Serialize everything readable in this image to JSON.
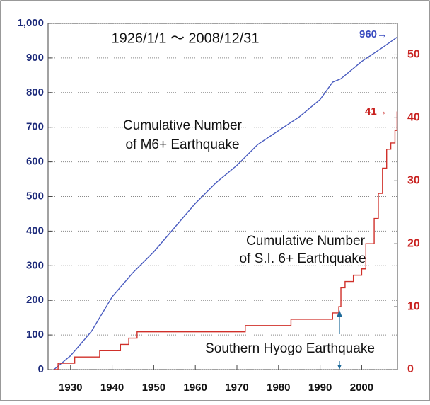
{
  "chart_data": {
    "type": "line",
    "annotations": [
      "1926/1/1 ～ 2008/12/31",
      "960→",
      "41→",
      "Cumulative Number",
      "of M6+ Earthquake",
      "Cumulative Number",
      "of S.I. 6+ Earthquake",
      "Southern Hyogo Earthquake"
    ],
    "xlim": [
      1924.6,
      2008.6
    ],
    "xticks": [
      1930,
      1940,
      1950,
      1960,
      1970,
      1980,
      1990,
      2000
    ],
    "ylim": [
      0,
      1000
    ],
    "yticks": [
      0,
      100,
      200,
      300,
      400,
      500,
      600,
      700,
      800,
      900,
      {
        "value": 1000,
        "label": "1,000"
      }
    ],
    "y2lim": [
      0,
      55
    ],
    "y2ticks": [
      0,
      10,
      20,
      30,
      40,
      50
    ],
    "grid": true,
    "series": [
      {
        "name": "Cumulative Number of M6+ Earthquake",
        "color": "#4a5cc0",
        "x": [
          1926,
          1930,
          1935,
          1940,
          1945,
          1950,
          1955,
          1960,
          1965,
          1970,
          1975,
          1980,
          1985,
          1990,
          1993,
          1995,
          2000,
          2005,
          2008.5
        ],
        "values": [
          0,
          40,
          110,
          210,
          280,
          340,
          410,
          480,
          540,
          590,
          650,
          690,
          730,
          780,
          830,
          840,
          890,
          930,
          960
        ]
      },
      {
        "name": "Cumulative Number of S.I. 6+ Earthquake",
        "color": "#d0302a",
        "axis": "y2",
        "step": true,
        "x": [
          1926,
          1927,
          1931,
          1937,
          1942,
          1944,
          1946,
          1972,
          1983,
          1993,
          1994.5,
          1995,
          1996,
          1998,
          2000,
          2001,
          2003,
          2004,
          2005,
          2006,
          2007,
          2008,
          2008.5
        ],
        "values": [
          0,
          1,
          2,
          3,
          4,
          5,
          6,
          7,
          8,
          9,
          10,
          13,
          14,
          15,
          16,
          20,
          24,
          28,
          32,
          35,
          36,
          38,
          41
        ]
      }
    ]
  }
}
